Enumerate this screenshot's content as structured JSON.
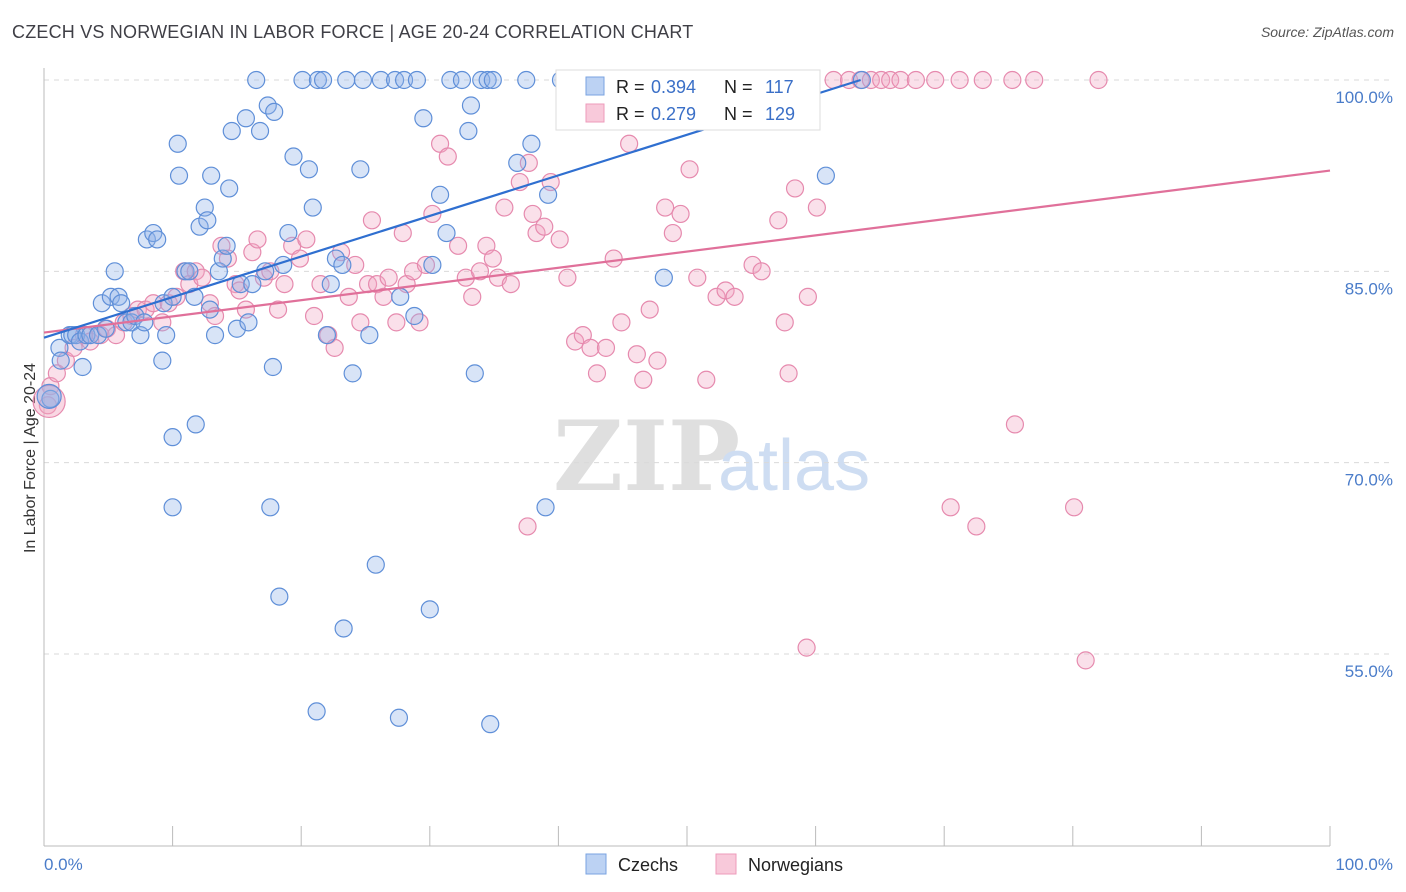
{
  "header": {
    "title": "CZECH VS NORWEGIAN IN LABOR FORCE | AGE 20-24 CORRELATION CHART",
    "source": "Source: ZipAtlas.com"
  },
  "watermark": {
    "zip": "ZIP",
    "atlas": "atlas"
  },
  "legend_top": {
    "rows": [
      {
        "r_label": "R =",
        "r_value": "0.394",
        "n_label": "N =",
        "n_value": "117"
      },
      {
        "r_label": "R =",
        "r_value": "0.279",
        "n_label": "N =",
        "n_value": "129"
      }
    ]
  },
  "legend_bottom": {
    "items": [
      "Czechs",
      "Norwegians"
    ]
  },
  "chart_data": {
    "type": "scatter",
    "title": "CZECH VS NORWEGIAN IN LABOR FORCE | AGE 20-24 CORRELATION CHART",
    "xlabel": "",
    "ylabel": "In Labor Force | Age 20-24",
    "xlim": [
      0,
      100
    ],
    "ylim": [
      40,
      101
    ],
    "x_tick_labels": [
      "0.0%",
      "100.0%"
    ],
    "y_ticks": [
      {
        "value": 100,
        "label": "100.0%"
      },
      {
        "value": 85,
        "label": "85.0%"
      },
      {
        "value": 70,
        "label": "70.0%"
      },
      {
        "value": 55,
        "label": "55.0%"
      }
    ],
    "grid": true,
    "colors": {
      "czechs": "#8fb3e8",
      "norwegians": "#f2a7c2",
      "czechs_line": "#2f6fd0",
      "norwegians_line": "#e0709a",
      "tick": "#4a7cc9"
    },
    "series": [
      {
        "name": "Czechs",
        "R": 0.394,
        "N": 117,
        "trend": {
          "x": [
            0,
            63.5
          ],
          "y": [
            79.8,
            100
          ]
        },
        "points": [
          [
            0.5,
            75
          ],
          [
            1.2,
            79
          ],
          [
            1.3,
            78
          ],
          [
            2,
            80
          ],
          [
            2.2,
            80
          ],
          [
            2.5,
            80
          ],
          [
            2.8,
            79.5
          ],
          [
            3,
            77.5
          ],
          [
            3.3,
            80
          ],
          [
            3.6,
            80
          ],
          [
            4.2,
            80
          ],
          [
            4.5,
            82.5
          ],
          [
            4.8,
            80.5
          ],
          [
            5.2,
            83
          ],
          [
            5.5,
            85
          ],
          [
            5.8,
            83
          ],
          [
            6,
            82.5
          ],
          [
            6.4,
            81
          ],
          [
            6.8,
            81
          ],
          [
            7.1,
            81.5
          ],
          [
            7.5,
            80
          ],
          [
            7.8,
            81
          ],
          [
            8,
            87.5
          ],
          [
            8.5,
            88
          ],
          [
            8.8,
            87.5
          ],
          [
            9.3,
            82.5
          ],
          [
            9.5,
            80
          ],
          [
            9.2,
            78
          ],
          [
            10,
            83
          ],
          [
            10.4,
            95
          ],
          [
            10.5,
            92.5
          ],
          [
            11,
            85
          ],
          [
            11.3,
            85
          ],
          [
            11.7,
            83
          ],
          [
            12.1,
            88.5
          ],
          [
            12.5,
            90
          ],
          [
            12.7,
            89
          ],
          [
            12.9,
            82
          ],
          [
            13,
            92.5
          ],
          [
            13.3,
            80
          ],
          [
            13.6,
            85
          ],
          [
            13.9,
            86
          ],
          [
            14.2,
            87
          ],
          [
            14.4,
            91.5
          ],
          [
            14.6,
            96
          ],
          [
            15,
            80.5
          ],
          [
            15.3,
            84
          ],
          [
            15.7,
            97
          ],
          [
            15.9,
            81
          ],
          [
            16.2,
            84
          ],
          [
            16.5,
            100
          ],
          [
            16.8,
            96
          ],
          [
            17.2,
            85
          ],
          [
            17.4,
            98
          ],
          [
            17.9,
            97.5
          ],
          [
            18.6,
            85.5
          ],
          [
            19,
            88
          ],
          [
            19.4,
            94
          ],
          [
            20.1,
            100
          ],
          [
            20.6,
            93
          ],
          [
            20.9,
            90
          ],
          [
            21.3,
            100
          ],
          [
            21.7,
            100
          ],
          [
            22,
            80
          ],
          [
            22.3,
            84
          ],
          [
            22.7,
            86
          ],
          [
            23.2,
            85.5
          ],
          [
            23.5,
            100
          ],
          [
            24.6,
            93
          ],
          [
            24.8,
            100
          ],
          [
            25.3,
            80
          ],
          [
            26.2,
            100
          ],
          [
            27.3,
            100
          ],
          [
            27.7,
            83
          ],
          [
            28,
            100
          ],
          [
            28.8,
            81.5
          ],
          [
            29,
            100
          ],
          [
            29.5,
            97
          ],
          [
            30.2,
            85.5
          ],
          [
            30.8,
            91
          ],
          [
            31.3,
            88
          ],
          [
            31.6,
            100
          ],
          [
            32.5,
            100
          ],
          [
            33,
            96
          ],
          [
            33.2,
            98
          ],
          [
            34,
            100
          ],
          [
            34.5,
            100
          ],
          [
            34.9,
            100
          ],
          [
            36.8,
            93.5
          ],
          [
            37.5,
            100
          ],
          [
            37.9,
            95
          ],
          [
            39.2,
            91
          ],
          [
            40.2,
            100
          ],
          [
            42.3,
            100
          ],
          [
            48.2,
            84.5
          ],
          [
            56.5,
            100
          ],
          [
            60.8,
            92.5
          ],
          [
            63.6,
            100
          ],
          [
            10,
            72
          ],
          [
            11.8,
            73
          ],
          [
            17.8,
            77.5
          ],
          [
            24,
            77
          ],
          [
            33.5,
            77
          ],
          [
            10,
            66.5
          ],
          [
            17.6,
            66.5
          ],
          [
            39,
            66.5
          ],
          [
            25.8,
            62
          ],
          [
            18.3,
            59.5
          ],
          [
            30,
            58.5
          ],
          [
            23.3,
            57
          ],
          [
            21.2,
            50.5
          ],
          [
            27.6,
            50
          ],
          [
            34.7,
            49.5
          ]
        ]
      },
      {
        "name": "Norwegians",
        "R": 0.279,
        "N": 129,
        "trend": {
          "x": [
            0,
            100
          ],
          "y": [
            80.2,
            92.9
          ]
        },
        "points": [
          [
            0.3,
            74.5
          ],
          [
            0.5,
            76
          ],
          [
            1,
            77
          ],
          [
            1.7,
            78
          ],
          [
            2.3,
            79
          ],
          [
            3.1,
            80
          ],
          [
            3.6,
            79.5
          ],
          [
            4.4,
            80
          ],
          [
            4.9,
            80.5
          ],
          [
            5.6,
            80
          ],
          [
            6.2,
            81
          ],
          [
            6.8,
            81.5
          ],
          [
            7.3,
            82
          ],
          [
            7.9,
            82
          ],
          [
            8.5,
            82.5
          ],
          [
            9.2,
            81
          ],
          [
            9.7,
            82.5
          ],
          [
            10.3,
            83
          ],
          [
            10.9,
            85
          ],
          [
            11.3,
            84
          ],
          [
            11.8,
            85
          ],
          [
            12.3,
            84.5
          ],
          [
            12.9,
            82.5
          ],
          [
            13.3,
            81.5
          ],
          [
            13.8,
            87
          ],
          [
            14.3,
            86
          ],
          [
            14.9,
            84
          ],
          [
            15.2,
            83.5
          ],
          [
            15.7,
            82
          ],
          [
            16.2,
            86.5
          ],
          [
            16.6,
            87.5
          ],
          [
            17.1,
            84.5
          ],
          [
            17.6,
            85
          ],
          [
            18.2,
            82
          ],
          [
            18.7,
            84
          ],
          [
            19.3,
            87
          ],
          [
            19.9,
            86
          ],
          [
            20.4,
            87.5
          ],
          [
            21,
            81.5
          ],
          [
            21.5,
            84
          ],
          [
            22.1,
            80
          ],
          [
            22.6,
            79
          ],
          [
            23.1,
            86.5
          ],
          [
            23.7,
            83
          ],
          [
            24.2,
            85.5
          ],
          [
            24.6,
            81
          ],
          [
            25.2,
            84
          ],
          [
            25.5,
            89
          ],
          [
            25.9,
            84
          ],
          [
            26.4,
            83
          ],
          [
            26.8,
            84.5
          ],
          [
            27.4,
            81
          ],
          [
            27.9,
            88
          ],
          [
            28.2,
            84
          ],
          [
            28.7,
            85
          ],
          [
            29.2,
            81
          ],
          [
            29.7,
            85.5
          ],
          [
            30.2,
            89.5
          ],
          [
            30.8,
            95
          ],
          [
            31.4,
            94
          ],
          [
            32.2,
            87
          ],
          [
            32.8,
            84.5
          ],
          [
            33.3,
            83
          ],
          [
            33.9,
            85
          ],
          [
            34.4,
            87
          ],
          [
            34.9,
            86
          ],
          [
            35.3,
            84.5
          ],
          [
            35.8,
            90
          ],
          [
            36.3,
            84
          ],
          [
            37,
            92
          ],
          [
            37.7,
            93.5
          ],
          [
            38,
            89.5
          ],
          [
            38.3,
            88
          ],
          [
            38.9,
            88.5
          ],
          [
            39.4,
            92
          ],
          [
            40.1,
            87.5
          ],
          [
            40.7,
            84.5
          ],
          [
            41.3,
            79.5
          ],
          [
            41.9,
            80
          ],
          [
            42.5,
            79
          ],
          [
            43,
            77
          ],
          [
            43.7,
            79
          ],
          [
            44.3,
            86
          ],
          [
            44.9,
            81
          ],
          [
            45.5,
            95
          ],
          [
            46.1,
            78.5
          ],
          [
            46.6,
            76.5
          ],
          [
            47.1,
            82
          ],
          [
            47.7,
            78
          ],
          [
            48.3,
            90
          ],
          [
            48.9,
            88
          ],
          [
            49.5,
            89.5
          ],
          [
            50.2,
            93
          ],
          [
            50.8,
            84.5
          ],
          [
            51.5,
            76.5
          ],
          [
            52.3,
            83
          ],
          [
            53,
            83.5
          ],
          [
            53.7,
            83
          ],
          [
            55.1,
            85.5
          ],
          [
            55.8,
            85
          ],
          [
            57.1,
            89
          ],
          [
            57.6,
            81
          ],
          [
            57.9,
            77
          ],
          [
            58.4,
            91.5
          ],
          [
            59.4,
            83
          ],
          [
            60.1,
            90
          ],
          [
            61.4,
            100
          ],
          [
            62.6,
            100
          ],
          [
            63.5,
            100
          ],
          [
            64.3,
            100
          ],
          [
            65.1,
            100
          ],
          [
            65.8,
            100
          ],
          [
            66.6,
            100
          ],
          [
            67.8,
            100
          ],
          [
            69.3,
            100
          ],
          [
            71.2,
            100
          ],
          [
            73,
            100
          ],
          [
            75.3,
            100
          ],
          [
            77,
            100
          ],
          [
            82,
            100
          ],
          [
            37.6,
            65
          ],
          [
            59.3,
            55.5
          ],
          [
            70.5,
            66.5
          ],
          [
            72.5,
            65
          ],
          [
            75.5,
            73
          ],
          [
            80.1,
            66.5
          ],
          [
            81,
            54.5
          ]
        ]
      }
    ]
  }
}
